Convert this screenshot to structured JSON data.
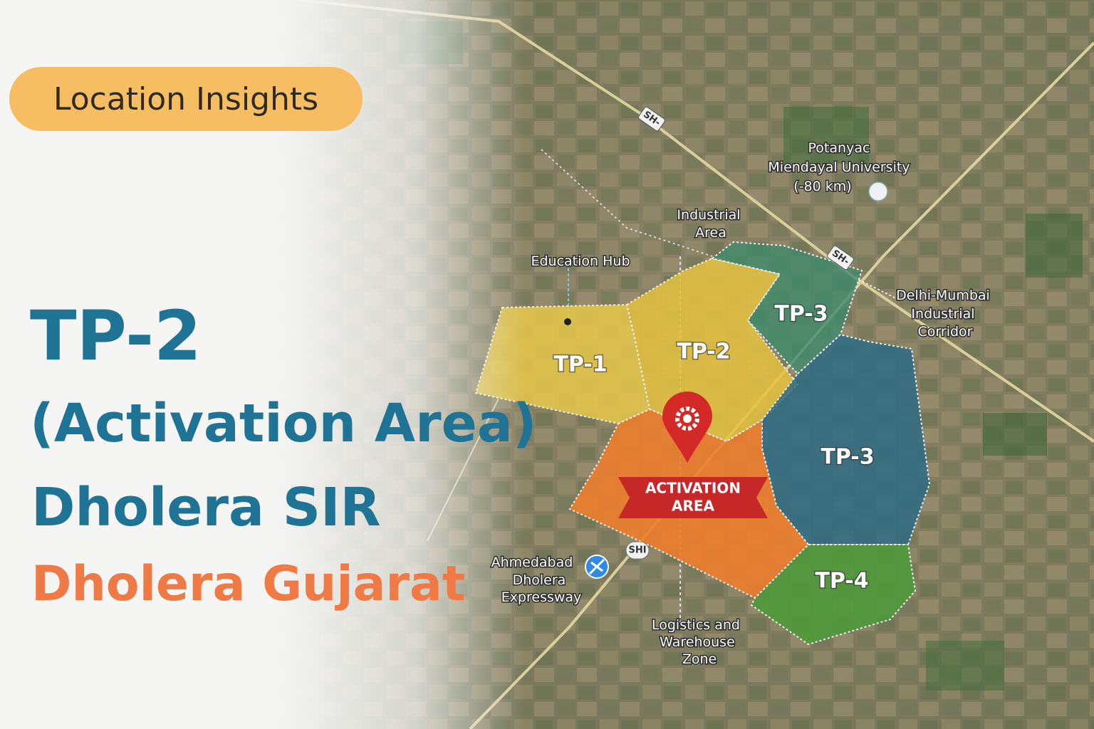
{
  "badge": "Location Insights",
  "title": {
    "line1": "TP-2",
    "line2": "(Activation Area)",
    "line3": "Dholera SIR",
    "line4": "Dholera Gujarat"
  },
  "zones": [
    {
      "label": "TP-1"
    },
    {
      "label": "TP-2"
    },
    {
      "label": "TP-3"
    },
    {
      "label": "TP-3"
    },
    {
      "label": "TP-4"
    }
  ],
  "activation_banner": [
    "ACTIVATION",
    "AREA"
  ],
  "places": [
    {
      "lines": [
        "Potanyac",
        "Miendayal University",
        "(-80 km)"
      ]
    },
    {
      "lines": [
        "Industrial",
        "Area"
      ]
    },
    {
      "lines": [
        "Education Hub"
      ]
    },
    {
      "lines": [
        "Delhi-Mumbai",
        "Industrial",
        "Corridor"
      ]
    },
    {
      "lines": [
        "Ahmedabad",
        "Dholera",
        "Expressway"
      ]
    },
    {
      "lines": [
        "Logistics and",
        "Warehouse",
        "Zone"
      ]
    }
  ],
  "road_badges": [
    "SH-",
    "SH-",
    "SHI"
  ]
}
